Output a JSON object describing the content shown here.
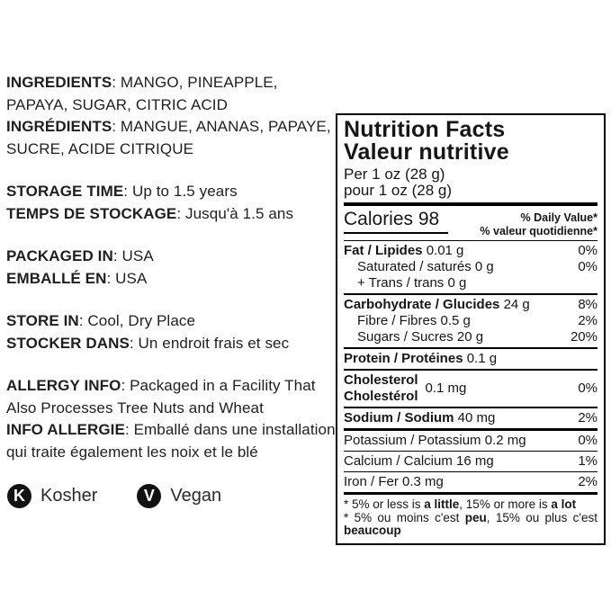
{
  "left_column": {
    "blocks": [
      {
        "lines": [
          {
            "label": "INGREDIENTS",
            "text": ": MANGO, PINEAPPLE, PAPAYA, SUGAR, CITRIC ACID"
          },
          {
            "label": "INGRÉDIENTS",
            "text": ": MANGUE, ANANAS, PAPAYE, SUCRE, ACIDE CITRIQUE"
          }
        ]
      },
      {
        "lines": [
          {
            "label": "STORAGE TIME",
            "text": ": Up to 1.5 years"
          },
          {
            "label": "TEMPS DE STOCKAGE",
            "text": ": Jusqu'à 1.5 ans"
          }
        ]
      },
      {
        "lines": [
          {
            "label": "PACKAGED IN",
            "text": ": USA"
          },
          {
            "label": "EMBALLÉ EN",
            "text": ": USA"
          }
        ]
      },
      {
        "lines": [
          {
            "label": "STORE IN",
            "text": ": Cool, Dry Place"
          },
          {
            "label": "STOCKER DANS",
            "text": ": Un endroit frais et sec"
          }
        ]
      },
      {
        "lines": [
          {
            "label": "ALLERGY INFO",
            "text": ": Packaged in a Facility That Also Processes Tree Nuts and Wheat"
          },
          {
            "label": "INFO ALLERGIE",
            "text": ": Emballé dans une installation qui traite également les noix et le blé"
          }
        ]
      }
    ],
    "badges": [
      {
        "icon_letter": "K",
        "label": "Kosher"
      },
      {
        "icon_letter": "V",
        "label": "Vegan"
      }
    ]
  },
  "nutrition_panel": {
    "title_en": "Nutrition Facts",
    "title_fr": "Valeur nutritive",
    "serving_en": "Per 1 oz (28 g)",
    "serving_fr": "pour 1 oz (28 g)",
    "calories": "Calories 98",
    "daily_value_en": "% Daily Value*",
    "daily_value_fr": "% valeur quotidienne*",
    "rows": {
      "fat": {
        "name": "Fat / Lipides",
        "amount": "0.01 g",
        "dv": "0%"
      },
      "saturated": {
        "name": "Saturated / saturés 0 g",
        "dv": "0%"
      },
      "trans": {
        "name": "+ Trans / trans 0 g",
        "dv": ""
      },
      "carbohydrate": {
        "name": "Carbohydrate / Glucides",
        "amount": "24 g",
        "dv": "8%"
      },
      "fibre": {
        "name": "Fibre / Fibres 0.5 g",
        "dv": "2%"
      },
      "sugars": {
        "name": "Sugars / Sucres 20 g",
        "dv": "20%"
      },
      "protein": {
        "name": "Protein / Protéines",
        "amount": "0.1 g",
        "dv": ""
      },
      "cholesterol": {
        "name_en": "Cholesterol",
        "name_fr": "Cholestérol",
        "amount": "0.1 mg",
        "dv": "0%"
      },
      "sodium": {
        "name": "Sodium / Sodium",
        "amount": "40 mg",
        "dv": "2%"
      },
      "potassium": {
        "name": "Potassium / Potassium 0.2 mg",
        "dv": "0%"
      },
      "calcium": {
        "name": "Calcium / Calcium 16 mg",
        "dv": "1%"
      },
      "iron": {
        "name": "Iron / Fer 0.3 mg",
        "dv": "2%"
      }
    },
    "footnote": {
      "en_1": "* 5% or less is ",
      "en_bold_1": "a little",
      "en_2": ", 15% or more is ",
      "en_bold_2": "a lot",
      "fr_1": "* 5% ou moins c'est ",
      "fr_bold_1": "peu",
      "fr_2": ", 15% ou plus c'est ",
      "fr_bold_2": "beaucoup"
    }
  }
}
